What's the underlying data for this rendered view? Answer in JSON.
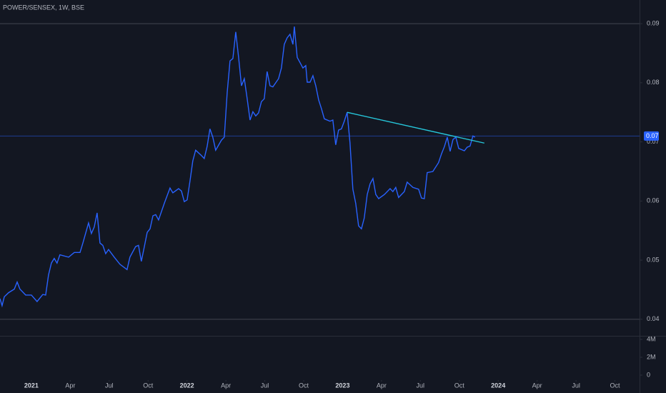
{
  "chart_data": [
    {
      "type": "line",
      "title": "POWER/SENSEX, 1W, BSE",
      "color": "#2962ff",
      "x": [
        -2.42,
        -2.26,
        -2.09,
        -1.76,
        -1.32,
        -1.1,
        -0.88,
        -0.44,
        0,
        0.44,
        0.88,
        1.1,
        1.32,
        1.54,
        1.76,
        1.98,
        2.2,
        2.87,
        3.31,
        3.75,
        3.97,
        4.41,
        4.63,
        4.85,
        5.07,
        5.29,
        5.51,
        5.73,
        5.95,
        6.39,
        6.83,
        7.38,
        7.6,
        8.04,
        8.26,
        8.48,
        8.71,
        8.93,
        9.15,
        9.37,
        9.59,
        9.81,
        10.25,
        10.69,
        10.91,
        11.35,
        11.57,
        11.79,
        12.01,
        12.23,
        12.45,
        12.67,
        13.11,
        13.33,
        13.55,
        13.77,
        13.99,
        14.21,
        14.66,
        14.88,
        15.1,
        15.32,
        15.54,
        15.76,
        15.98,
        16.2,
        16.42,
        16.64,
        16.86,
        17.08,
        17.3,
        17.52,
        17.74,
        17.96,
        18.18,
        18.4,
        18.62,
        19.06,
        19.28,
        19.5,
        19.72,
        19.94,
        20.17,
        20.28,
        20.5,
        20.72,
        20.94,
        21.16,
        21.27,
        21.49,
        21.71,
        21.93,
        22.15,
        22.37,
        22.59,
        23.03,
        23.25,
        23.47,
        23.69,
        23.91,
        24.13,
        24.35,
        24.57,
        24.79,
        25.01,
        25.23,
        25.45,
        25.67,
        25.9,
        26.12,
        26.34,
        26.56,
        26.78,
        27.22,
        27.66,
        27.88,
        28.1,
        28.32,
        28.76,
        28.98,
        29.42,
        29.86,
        30.08,
        30.3,
        30.52,
        30.96,
        31.4,
        31.63,
        31.85,
        32.07,
        32.29,
        32.51,
        32.73,
        32.95,
        33.39,
        33.61,
        33.83,
        34.05,
        34.21
      ],
      "values": [
        0.0435,
        0.0423,
        0.0438,
        0.0445,
        0.0451,
        0.0463,
        0.0451,
        0.0441,
        0.0441,
        0.043,
        0.0442,
        0.0441,
        0.0475,
        0.0495,
        0.0503,
        0.0495,
        0.0509,
        0.0505,
        0.0513,
        0.0513,
        0.0529,
        0.0563,
        0.0545,
        0.0556,
        0.058,
        0.0529,
        0.0525,
        0.0511,
        0.0518,
        0.0505,
        0.0493,
        0.0484,
        0.0505,
        0.0523,
        0.0525,
        0.0498,
        0.0523,
        0.0547,
        0.0553,
        0.0575,
        0.0577,
        0.0568,
        0.0596,
        0.0622,
        0.0614,
        0.0621,
        0.0617,
        0.0599,
        0.0602,
        0.0634,
        0.0668,
        0.0686,
        0.0677,
        0.0672,
        0.0692,
        0.0722,
        0.0708,
        0.0686,
        0.0703,
        0.0708,
        0.0783,
        0.0837,
        0.0841,
        0.0886,
        0.0843,
        0.0795,
        0.0807,
        0.0773,
        0.0737,
        0.0751,
        0.0744,
        0.0749,
        0.0768,
        0.0773,
        0.0819,
        0.0795,
        0.0793,
        0.0807,
        0.0825,
        0.0865,
        0.0876,
        0.0882,
        0.0865,
        0.0895,
        0.0843,
        0.0834,
        0.0825,
        0.0829,
        0.0801,
        0.0801,
        0.0812,
        0.0795,
        0.0771,
        0.0756,
        0.0739,
        0.0735,
        0.0737,
        0.0695,
        0.072,
        0.0722,
        0.0735,
        0.075,
        0.0698,
        0.062,
        0.0596,
        0.0558,
        0.0553,
        0.0571,
        0.0611,
        0.0629,
        0.0638,
        0.0611,
        0.0604,
        0.0611,
        0.0621,
        0.0616,
        0.0623,
        0.0606,
        0.0616,
        0.0632,
        0.0623,
        0.062,
        0.0605,
        0.0604,
        0.0648,
        0.065,
        0.0665,
        0.068,
        0.0692,
        0.0708,
        0.0684,
        0.0704,
        0.0708,
        0.0689,
        0.0685,
        0.0691,
        0.0693,
        0.071,
        0.0708
      ],
      "trendline": {
        "x": [
          24.35,
          34.93
        ],
        "values": [
          0.075,
          0.0698
        ],
        "color": "#26c6da"
      },
      "hlines": [
        0.09,
        0.04
      ],
      "last_price": {
        "value": 0.071,
        "label": "0.07"
      },
      "xlim": [
        -2.42,
        46.9
      ],
      "ylim": [
        0.0372,
        0.094
      ],
      "xticks": [
        {
          "value": 0,
          "label": "2021"
        },
        {
          "value": 3,
          "label": "Apr"
        },
        {
          "value": 6,
          "label": "Jul"
        },
        {
          "value": 9,
          "label": "Oct"
        },
        {
          "value": 12,
          "label": "2022"
        },
        {
          "value": 15,
          "label": "Apr"
        },
        {
          "value": 18,
          "label": "Jul"
        },
        {
          "value": 21,
          "label": "Oct"
        },
        {
          "value": 24,
          "label": "2023"
        },
        {
          "value": 27,
          "label": "Apr"
        },
        {
          "value": 30,
          "label": "Jul"
        },
        {
          "value": 33,
          "label": "Oct"
        },
        {
          "value": 36,
          "label": "2024"
        },
        {
          "value": 39,
          "label": "Apr"
        },
        {
          "value": 42,
          "label": "Jul"
        },
        {
          "value": 45,
          "label": "Oct"
        }
      ],
      "yticks": [
        0.09,
        0.08,
        0.07,
        0.06,
        0.05,
        0.04
      ]
    },
    {
      "type": "bar",
      "ylim": [
        -560000,
        4320000
      ],
      "yticks": [
        {
          "value": 4000000,
          "label": "4M"
        },
        {
          "value": 2000000,
          "label": "2M"
        },
        0
      ]
    }
  ]
}
